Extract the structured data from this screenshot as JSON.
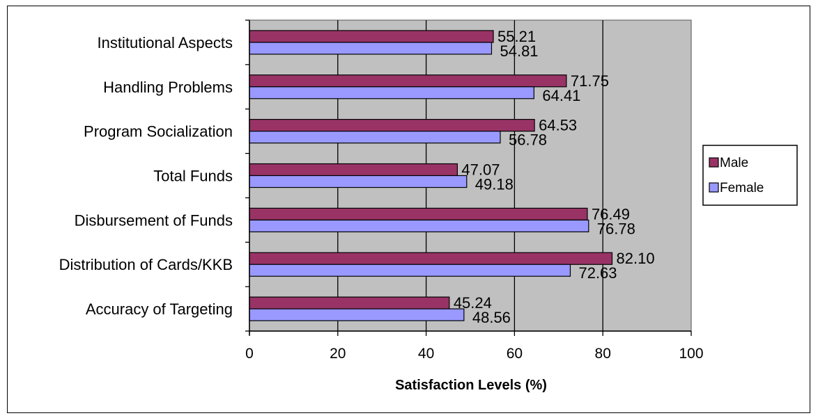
{
  "chart_data": {
    "type": "bar",
    "orientation": "horizontal",
    "categories": [
      "Institutional Aspects",
      "Handling Problems",
      "Program Socialization",
      "Total Funds",
      "Disbursement of Funds",
      "Distribution of Cards/KKB",
      "Accuracy of Targeting"
    ],
    "series": [
      {
        "name": "Male",
        "color": "#993366",
        "values": [
          55.21,
          71.75,
          64.53,
          47.07,
          76.49,
          82.1,
          45.24
        ],
        "labels": [
          "55.21",
          "71.75",
          "64.53",
          "47.07",
          "76.49",
          "82.10",
          "45.24"
        ]
      },
      {
        "name": "Female",
        "color": "#9999ff",
        "values": [
          54.81,
          64.41,
          56.78,
          49.18,
          76.78,
          72.63,
          48.56
        ],
        "labels": [
          "54.81",
          "64.41",
          "56.78",
          "49.18",
          "76.78",
          "72.63",
          "48.56"
        ]
      }
    ],
    "xlabel": "Satisfaction Levels (%)",
    "ylabel": "",
    "xlim": [
      0,
      100
    ],
    "xticks": [
      "0",
      "20",
      "40",
      "60",
      "80",
      "100"
    ],
    "grid": true,
    "plot_background": "#c0c0c0",
    "legend_position": "right"
  }
}
